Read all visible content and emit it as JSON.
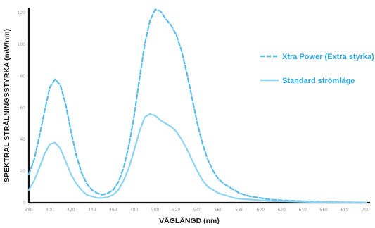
{
  "chart_data": {
    "type": "line",
    "xlabel": "VÅGLÄNGD (nm)",
    "ylabel": "SPEKTRAL STRÅLNINGSSTYRKA (mW/nm)",
    "x_ticks": [
      "380",
      "400",
      "420",
      "440",
      "460",
      "480",
      "500",
      "520",
      "540",
      "560",
      "580",
      "600",
      "620",
      "640",
      "660",
      "680",
      "700"
    ],
    "y_ticks": [
      "0",
      "20",
      "40",
      "60",
      "80",
      "100",
      "120"
    ],
    "xlim": [
      380,
      700
    ],
    "ylim": [
      0,
      120
    ],
    "legend": "right",
    "series": [
      {
        "name": "Xtra Power (Extra styrka)",
        "color": "#5bbde8",
        "style": "dashed",
        "x": [
          380,
          385,
          390,
          395,
          400,
          405,
          410,
          415,
          420,
          425,
          430,
          435,
          440,
          445,
          450,
          455,
          460,
          465,
          470,
          475,
          480,
          485,
          490,
          495,
          500,
          505,
          510,
          515,
          520,
          525,
          530,
          535,
          540,
          545,
          550,
          555,
          560,
          565,
          570,
          575,
          580,
          590,
          600,
          610,
          620,
          640,
          660,
          680,
          700
        ],
        "values": [
          18,
          27,
          42,
          58,
          73,
          78,
          74,
          62,
          45,
          30,
          19,
          12,
          8,
          6,
          5,
          6,
          8,
          13,
          22,
          36,
          55,
          78,
          100,
          115,
          122,
          121,
          116,
          112,
          106,
          96,
          82,
          66,
          50,
          37,
          27,
          20,
          15,
          12,
          10,
          8,
          6,
          4,
          3,
          2,
          1.5,
          1,
          0.5,
          0.3,
          0.2
        ]
      },
      {
        "name": "Standard strömläge",
        "color": "#8fd3f2",
        "style": "solid",
        "x": [
          380,
          385,
          390,
          395,
          400,
          405,
          410,
          415,
          420,
          425,
          430,
          435,
          440,
          445,
          450,
          455,
          460,
          465,
          470,
          475,
          480,
          485,
          490,
          495,
          500,
          505,
          510,
          515,
          520,
          525,
          530,
          535,
          540,
          545,
          550,
          555,
          560,
          565,
          570,
          575,
          580,
          590,
          600,
          610,
          620,
          640,
          660,
          680,
          700
        ],
        "values": [
          8,
          14,
          22,
          31,
          37,
          38,
          34,
          26,
          18,
          12,
          8,
          5,
          4,
          3,
          3,
          3.5,
          5,
          8,
          14,
          22,
          33,
          45,
          54,
          56,
          55,
          52,
          50,
          48,
          45,
          40,
          34,
          27,
          20,
          14,
          10,
          8,
          6,
          5,
          4,
          3,
          2.5,
          2,
          1.5,
          1.2,
          1,
          0.6,
          0.3,
          0.2,
          0.1
        ]
      }
    ]
  }
}
